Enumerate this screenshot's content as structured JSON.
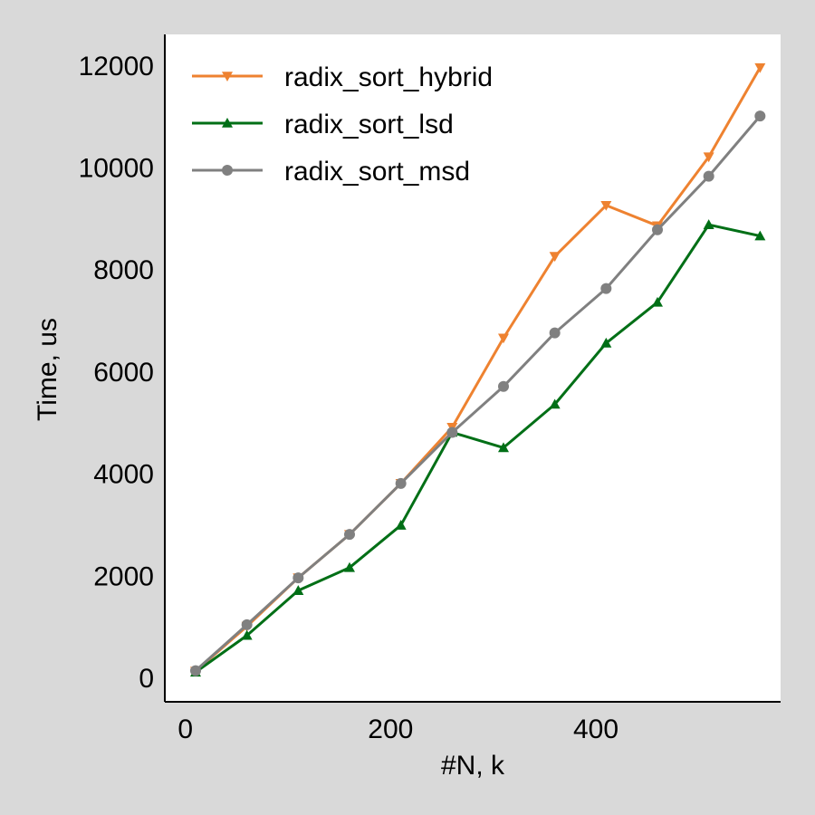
{
  "chart_data": {
    "type": "line",
    "title": "",
    "xlabel": "#N, k",
    "ylabel": "Time,  us",
    "xlim": [
      -20,
      580
    ],
    "ylim": [
      -480,
      12600
    ],
    "xticks": [
      0,
      200,
      400
    ],
    "yticks": [
      0,
      2000,
      4000,
      6000,
      8000,
      10000,
      12000
    ],
    "grid": false,
    "legend_position": "top-left",
    "x": [
      10,
      60,
      110,
      160,
      210,
      260,
      310,
      360,
      410,
      460,
      510,
      560
    ],
    "series": [
      {
        "name": "radix_sort_hybrid",
        "color": "#ee8230",
        "marker": "triangle-down",
        "values": [
          120,
          1000,
          1950,
          2800,
          3800,
          4900,
          6650,
          8250,
          9250,
          8850,
          10200,
          11950
        ]
      },
      {
        "name": "radix_sort_lsd",
        "color": "#006f16",
        "marker": "triangle-up",
        "values": [
          100,
          820,
          1700,
          2150,
          2980,
          4800,
          4500,
          5350,
          6550,
          7350,
          8870,
          8650
        ]
      },
      {
        "name": "radix_sort_msd",
        "color": "#808080",
        "marker": "circle",
        "values": [
          130,
          1030,
          1950,
          2800,
          3800,
          4800,
          5700,
          6750,
          7620,
          8770,
          9820,
          11000
        ]
      }
    ]
  }
}
